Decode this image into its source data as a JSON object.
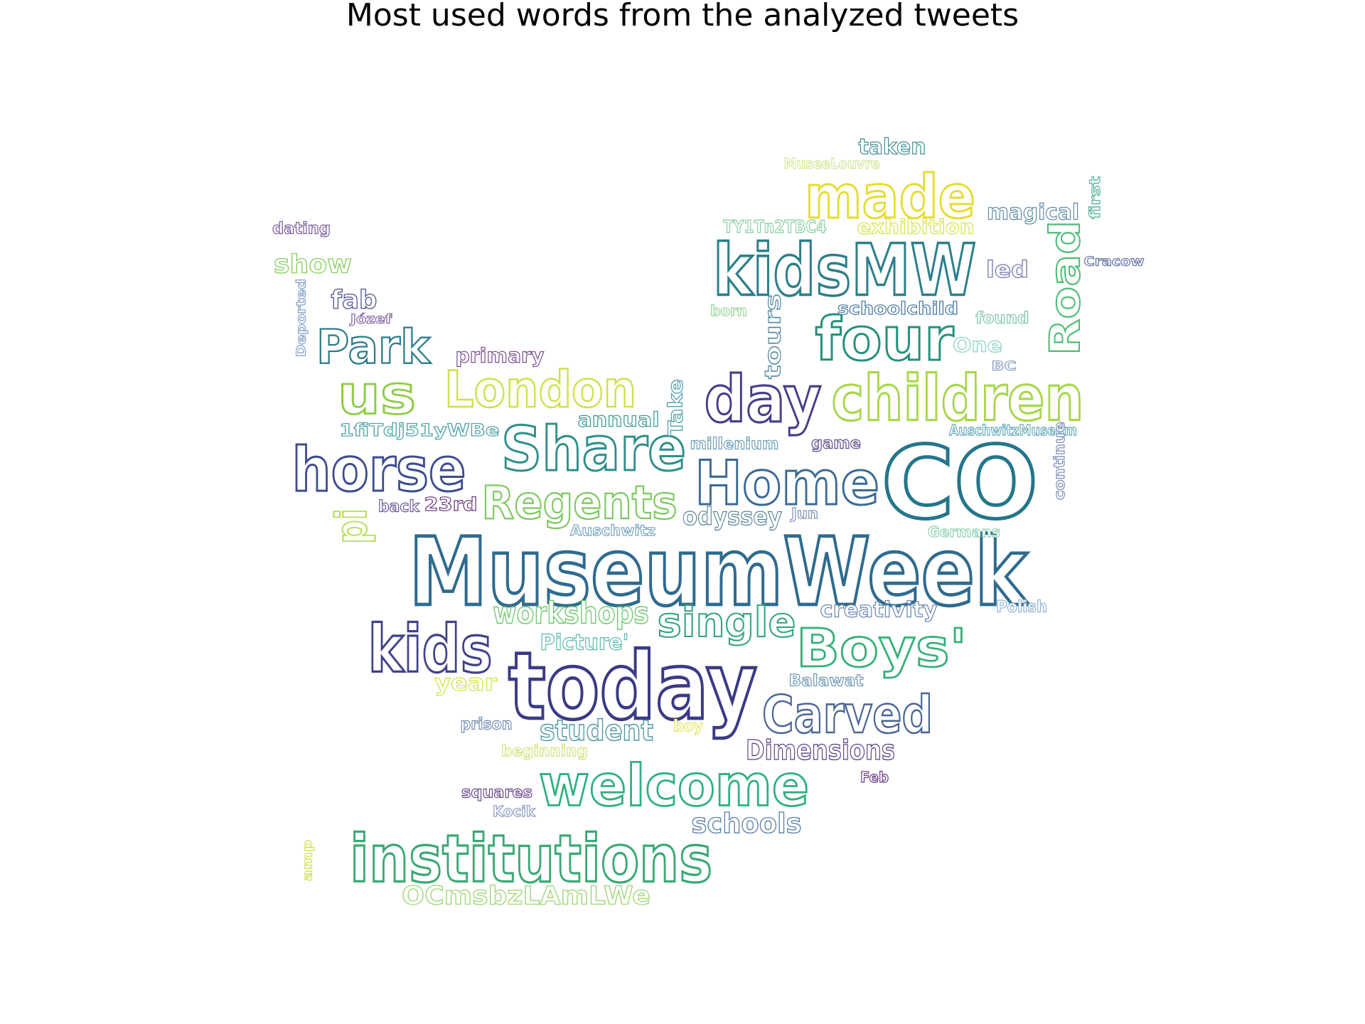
{
  "title": "Most used words from the analyzed tweets",
  "words": [
    {
      "text": "MuseumWeek",
      "color": "#2f6b8e"
    },
    {
      "text": "today",
      "color": "#3b3a85"
    },
    {
      "text": "CO",
      "color": "#23768b"
    },
    {
      "text": "Share",
      "color": "#2d8f8b"
    },
    {
      "text": "Home",
      "color": "#3a6a98"
    },
    {
      "text": "horse",
      "color": "#3d4b8f"
    },
    {
      "text": "children",
      "color": "#a7d64a"
    },
    {
      "text": "kidsMW",
      "color": "#2c7f8b"
    },
    {
      "text": "four",
      "color": "#22917e"
    },
    {
      "text": "day",
      "color": "#453f8b"
    },
    {
      "text": "kids",
      "color": "#414287"
    },
    {
      "text": "welcome",
      "color": "#2fb07f"
    },
    {
      "text": "institutions",
      "color": "#3aa874"
    },
    {
      "text": "Boys'",
      "color": "#35b07a"
    },
    {
      "text": "Carved",
      "color": "#4a6596"
    },
    {
      "text": "made",
      "color": "#e6dc2e"
    },
    {
      "text": "London",
      "color": "#cfe04a"
    },
    {
      "text": "us",
      "color": "#8ecc45"
    },
    {
      "text": "Park",
      "color": "#2b7b8b"
    },
    {
      "text": "Regents",
      "color": "#7dc85f"
    },
    {
      "text": "single",
      "color": "#33a380"
    },
    {
      "text": "Road",
      "color": "#53bd7a"
    },
    {
      "text": "workshops",
      "color": "#6fc770"
    },
    {
      "text": "Dimensions",
      "color": "#5a3f86"
    },
    {
      "text": "student",
      "color": "#4a94a3"
    },
    {
      "text": "schools",
      "color": "#5a7ea6"
    },
    {
      "text": "OCmsbzLAmLWe",
      "color": "#9cd573"
    },
    {
      "text": "odyssey",
      "color": "#54839a"
    },
    {
      "text": "creativity",
      "color": "#6a88ad"
    },
    {
      "text": "Picture'",
      "color": "#56b7ad"
    },
    {
      "text": "pi",
      "color": "#b5dc50"
    },
    {
      "text": "exhibition",
      "color": "#d7e24e"
    },
    {
      "text": "magical",
      "color": "#5d8aa8"
    },
    {
      "text": "taken",
      "color": "#3f8b94"
    },
    {
      "text": "show",
      "color": "#86ce5d"
    },
    {
      "text": "fab",
      "color": "#4d4f88"
    },
    {
      "text": "primary",
      "color": "#7a4e8e"
    },
    {
      "text": "annual",
      "color": "#3b9a93"
    },
    {
      "text": "Take",
      "color": "#4d9fae"
    },
    {
      "text": "1fiTdj51yWBe",
      "color": "#53a6a8"
    },
    {
      "text": "tours",
      "color": "#50869e"
    },
    {
      "text": "schoolchild",
      "color": "#4d7ca3"
    },
    {
      "text": "led",
      "color": "#6c76a8"
    },
    {
      "text": "found",
      "color": "#7ec8a8"
    },
    {
      "text": "One",
      "color": "#8fd1c2"
    },
    {
      "text": "TY1Tn2TBC4",
      "color": "#7fcb9a"
    },
    {
      "text": "MuseeLouvre",
      "color": "#cfe89a"
    },
    {
      "text": "first",
      "color": "#62b6a4"
    },
    {
      "text": "Cracow",
      "color": "#6d7aa8"
    },
    {
      "text": "BC",
      "color": "#8da6c9"
    },
    {
      "text": "AuschwitzMuseum",
      "color": "#5aa3b0"
    },
    {
      "text": "continue",
      "color": "#7f92b6"
    },
    {
      "text": "game",
      "color": "#5e4b8a"
    },
    {
      "text": "millenium",
      "color": "#6f9fb8"
    },
    {
      "text": "back",
      "color": "#6a5a98"
    },
    {
      "text": "23rd",
      "color": "#6d3c86"
    },
    {
      "text": "Jun",
      "color": "#8094bd"
    },
    {
      "text": "Auschwitz",
      "color": "#7aa8bf"
    },
    {
      "text": "Germans",
      "color": "#8fd0b4"
    },
    {
      "text": "Polish",
      "color": "#8fb1cf"
    },
    {
      "text": "Balawat",
      "color": "#6d9ab3"
    },
    {
      "text": "year",
      "color": "#d4e34d"
    },
    {
      "text": "prison",
      "color": "#6e8bb0"
    },
    {
      "text": "boy",
      "color": "#e4e55a"
    },
    {
      "text": "beginning",
      "color": "#cfe47a"
    },
    {
      "text": "squares",
      "color": "#6a4c8c"
    },
    {
      "text": "Kocik",
      "color": "#8f9ac1"
    },
    {
      "text": "Feb",
      "color": "#6a3b84"
    },
    {
      "text": "amp",
      "color": "#d4e36a"
    },
    {
      "text": "dating",
      "color": "#7b5c98"
    },
    {
      "text": "Deported",
      "color": "#8aa6cb"
    },
    {
      "text": "Józef",
      "color": "#8a6fa7"
    },
    {
      "text": "born",
      "color": "#9ad79a"
    }
  ]
}
